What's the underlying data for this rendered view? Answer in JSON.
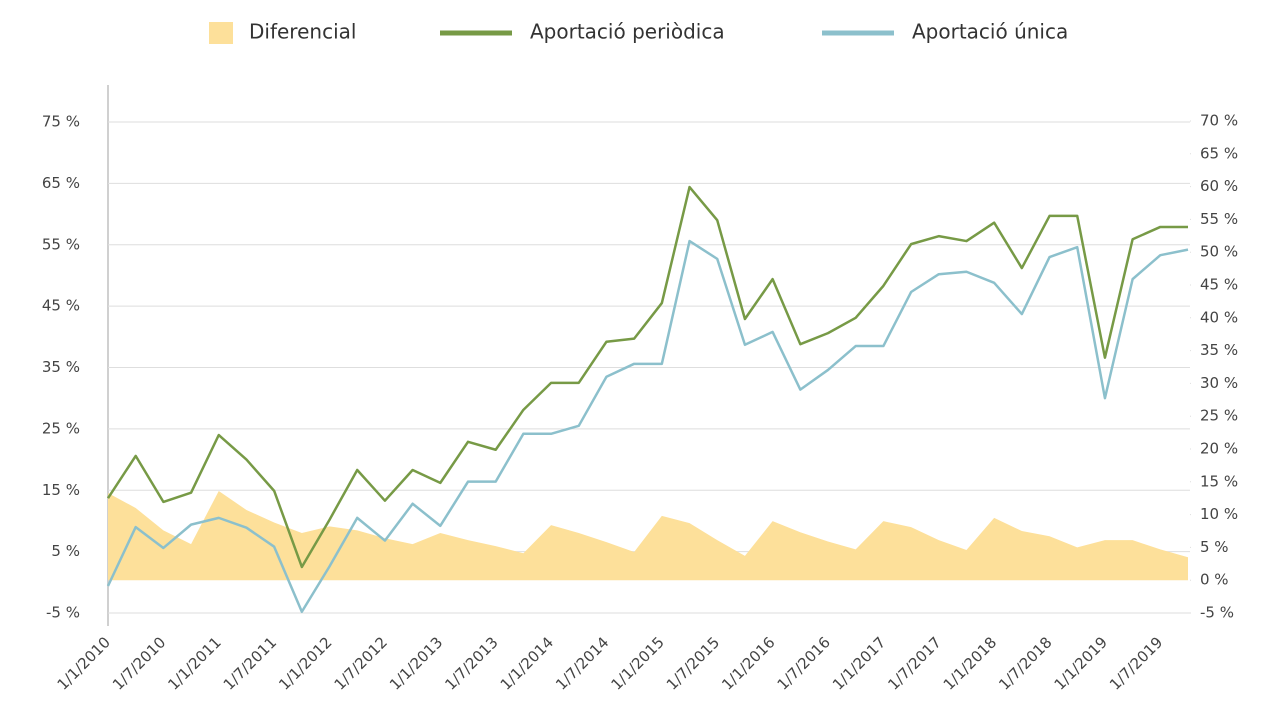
{
  "chart_data": {
    "type": "line",
    "categories": [
      "1/1/2010",
      null,
      "1/7/2010",
      null,
      "1/1/2011",
      null,
      "1/7/2011",
      null,
      "1/1/2012",
      null,
      "1/7/2012",
      null,
      "1/1/2013",
      null,
      "1/7/2013",
      null,
      "1/1/2014",
      null,
      "1/7/2014",
      null,
      "1/1/2015",
      null,
      "1/7/2015",
      null,
      "1/1/2016",
      null,
      "1/7/2016",
      null,
      "1/1/2017",
      null,
      "1/7/2017",
      null,
      "1/1/2018",
      null,
      "1/7/2018",
      null,
      "1/1/2019",
      null,
      "1/7/2019",
      null
    ],
    "series": [
      {
        "name": "Diferencial",
        "color": "#fde09a",
        "kind": "area",
        "axis": "y2",
        "values": [
          13.3,
          11.0,
          7.6,
          5.5,
          13.6,
          10.7,
          8.8,
          7.2,
          8.2,
          7.6,
          6.4,
          5.5,
          7.2,
          6.1,
          5.2,
          4.1,
          8.4,
          7.2,
          5.8,
          4.3,
          9.8,
          8.7,
          6.1,
          3.7,
          9.0,
          7.3,
          5.9,
          4.7,
          9.0,
          8.1,
          6.1,
          4.6,
          9.5,
          7.5,
          6.7,
          5.0,
          6.1,
          6.1,
          4.7,
          3.5
        ]
      },
      {
        "name": "Aportació periòdica",
        "color": "#779a46",
        "kind": "line",
        "values": [
          13.7,
          20.6,
          13.1,
          14.6,
          24.0,
          20.0,
          14.9,
          2.5,
          10.2,
          18.3,
          13.3,
          18.3,
          16.2,
          22.9,
          21.6,
          28.1,
          32.5,
          32.5,
          39.2,
          39.7,
          45.5,
          64.4,
          59.0,
          42.9,
          49.4,
          38.8,
          40.6,
          43.1,
          48.3,
          55.1,
          56.4,
          55.6,
          58.6,
          51.2,
          59.7,
          59.7,
          36.6,
          55.9,
          57.9,
          57.9
        ]
      },
      {
        "name": "Aportació única",
        "color": "#8cc0cc",
        "kind": "line",
        "values": [
          -0.6,
          9.0,
          5.6,
          9.4,
          10.5,
          8.9,
          5.8,
          -4.8,
          2.6,
          10.5,
          6.8,
          12.8,
          9.2,
          16.4,
          16.4,
          24.2,
          24.2,
          25.5,
          33.5,
          35.6,
          35.6,
          55.6,
          52.7,
          38.7,
          40.8,
          31.4,
          34.6,
          38.5,
          38.5,
          47.3,
          50.2,
          50.6,
          48.8,
          43.7,
          53.0,
          54.6,
          30.0,
          49.4,
          53.3,
          54.2
        ]
      }
    ],
    "ylim": [
      -5,
      75
    ],
    "yticks": [
      {
        "value": -5,
        "label": "-5 %"
      },
      {
        "value": 5,
        "label": "5 %"
      },
      {
        "value": 15,
        "label": "15 %"
      },
      {
        "value": 25,
        "label": "25 %"
      },
      {
        "value": 35,
        "label": "35 %"
      },
      {
        "value": 45,
        "label": "45 %"
      },
      {
        "value": 55,
        "label": "55 %"
      },
      {
        "value": 65,
        "label": "65 %"
      },
      {
        "value": 75,
        "label": "75 %"
      }
    ],
    "y2lim": [
      -5,
      70
    ],
    "y2ticks": [
      {
        "value": -5,
        "label": "-5 %"
      },
      {
        "value": 0,
        "label": "0 %"
      },
      {
        "value": 5,
        "label": "5 %"
      },
      {
        "value": 10,
        "label": "10 %"
      },
      {
        "value": 15,
        "label": "15 %"
      },
      {
        "value": 20,
        "label": "20 %"
      },
      {
        "value": 25,
        "label": "25 %"
      },
      {
        "value": 30,
        "label": "30 %"
      },
      {
        "value": 35,
        "label": "35 %"
      },
      {
        "value": 40,
        "label": "40 %"
      },
      {
        "value": 45,
        "label": "45 %"
      },
      {
        "value": 50,
        "label": "50 %"
      },
      {
        "value": 55,
        "label": "55 %"
      },
      {
        "value": 60,
        "label": "60 %"
      },
      {
        "value": 65,
        "label": "65 %"
      },
      {
        "value": 70,
        "label": "70 %"
      }
    ],
    "grid": true,
    "legend": "top"
  }
}
